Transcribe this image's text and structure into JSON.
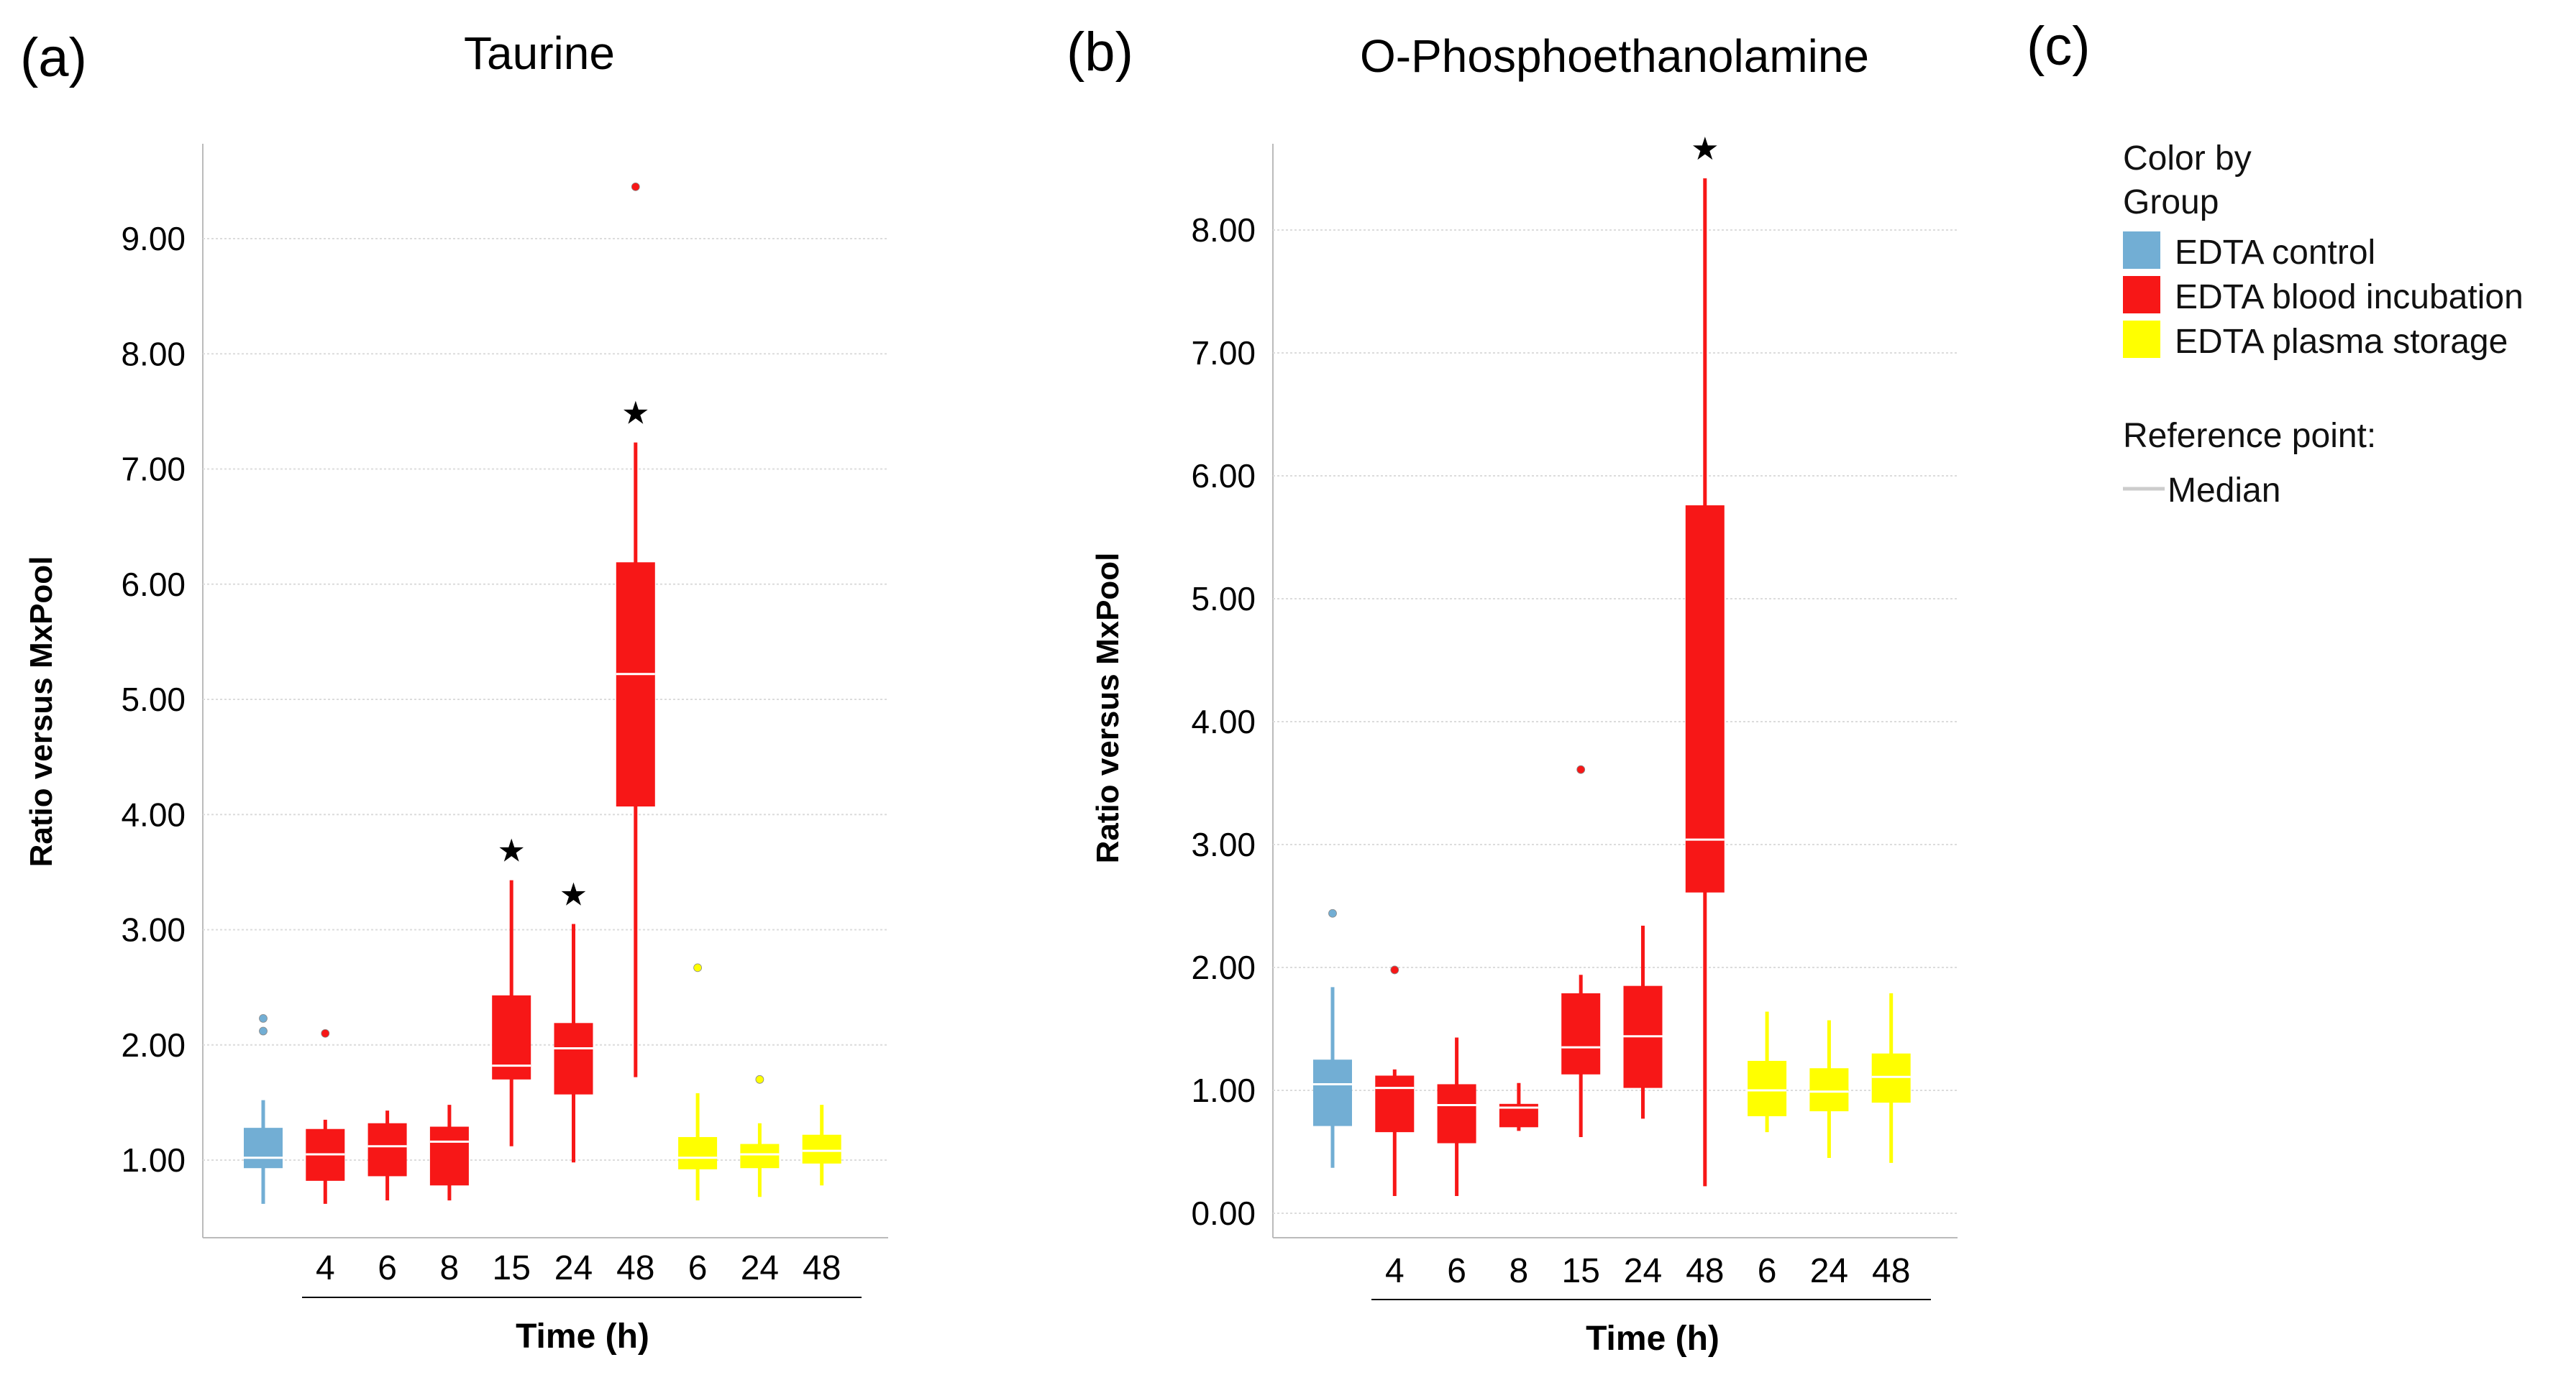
{
  "panel_labels": [
    "(a)",
    "(b)",
    "(c)"
  ],
  "legend": {
    "title_line1": "Color by",
    "title_line2": "Group",
    "items": [
      {
        "label": "EDTA control",
        "color": "#72aed4"
      },
      {
        "label": "EDTA blood incubation",
        "color": "#f71717"
      },
      {
        "label": "EDTA plasma storage",
        "color": "#ffff00"
      }
    ],
    "ref_title": "Reference point:",
    "ref_item": "Median"
  },
  "chart_data": [
    {
      "type": "box",
      "title": "Taurine",
      "ylabel": "Ratio versus MxPool",
      "xlabel": "Time (h)",
      "ylim": [
        0.0,
        9.5
      ],
      "yticks": [
        1.0,
        2.0,
        3.0,
        4.0,
        5.0,
        6.0,
        7.0,
        8.0,
        9.0
      ],
      "ytick_labels": [
        "1.00",
        "2.00",
        "3.00",
        "4.00",
        "5.00",
        "6.00",
        "7.00",
        "8.00",
        "9.00"
      ],
      "grid": true,
      "categories": [
        "",
        "4",
        "6",
        "8",
        "15",
        "24",
        "48",
        "6",
        "24",
        "48"
      ],
      "series": [
        {
          "group": "EDTA control",
          "label": "",
          "whisker_low": 0.62,
          "q1": 0.93,
          "median": 1.02,
          "q3": 1.28,
          "whisker_high": 1.52,
          "outliers": [
            2.12,
            2.23
          ],
          "significant": false
        },
        {
          "group": "EDTA blood incubation",
          "label": "4",
          "whisker_low": 0.62,
          "q1": 0.82,
          "median": 1.05,
          "q3": 1.27,
          "whisker_high": 1.35,
          "outliers": [
            2.1
          ],
          "significant": false
        },
        {
          "group": "EDTA blood incubation",
          "label": "6",
          "whisker_low": 0.65,
          "q1": 0.86,
          "median": 1.12,
          "q3": 1.32,
          "whisker_high": 1.43,
          "outliers": [],
          "significant": false
        },
        {
          "group": "EDTA blood incubation",
          "label": "8",
          "whisker_low": 0.65,
          "q1": 0.78,
          "median": 1.16,
          "q3": 1.29,
          "whisker_high": 1.48,
          "outliers": [],
          "significant": false
        },
        {
          "group": "EDTA blood incubation",
          "label": "15",
          "whisker_low": 1.12,
          "q1": 1.7,
          "median": 1.82,
          "q3": 2.43,
          "whisker_high": 3.43,
          "outliers": [],
          "significant": true
        },
        {
          "group": "EDTA blood incubation",
          "label": "24",
          "whisker_low": 0.98,
          "q1": 1.57,
          "median": 1.97,
          "q3": 2.19,
          "whisker_high": 3.05,
          "outliers": [],
          "significant": true
        },
        {
          "group": "EDTA blood incubation",
          "label": "48",
          "whisker_low": 1.72,
          "q1": 4.07,
          "median": 5.22,
          "q3": 6.19,
          "whisker_high": 7.23,
          "outliers": [
            9.45
          ],
          "significant": true
        },
        {
          "group": "EDTA plasma storage",
          "label": "6",
          "whisker_low": 0.65,
          "q1": 0.92,
          "median": 1.02,
          "q3": 1.2,
          "whisker_high": 1.58,
          "outliers": [
            2.67
          ],
          "significant": false
        },
        {
          "group": "EDTA plasma storage",
          "label": "24",
          "whisker_low": 0.68,
          "q1": 0.93,
          "median": 1.05,
          "q3": 1.14,
          "whisker_high": 1.32,
          "outliers": [
            1.7
          ],
          "significant": false
        },
        {
          "group": "EDTA plasma storage",
          "label": "48",
          "whisker_low": 0.78,
          "q1": 0.97,
          "median": 1.08,
          "q3": 1.22,
          "whisker_high": 1.48,
          "outliers": [],
          "significant": false
        }
      ]
    },
    {
      "type": "box",
      "title": "O-Phosphoethanolamine",
      "ylabel": "Ratio versus MxPool",
      "xlabel": "Time (h)",
      "ylim": [
        -0.1,
        8.7
      ],
      "yticks": [
        0.0,
        1.0,
        2.0,
        3.0,
        4.0,
        5.0,
        6.0,
        7.0,
        8.0
      ],
      "ytick_labels": [
        "0.00",
        "1.00",
        "2.00",
        "3.00",
        "4.00",
        "5.00",
        "6.00",
        "7.00",
        "8.00"
      ],
      "grid": true,
      "categories": [
        "",
        "4",
        "6",
        "8",
        "15",
        "24",
        "48",
        "6",
        "24",
        "48"
      ],
      "series": [
        {
          "group": "EDTA control",
          "label": "",
          "whisker_low": 0.37,
          "q1": 0.71,
          "median": 1.05,
          "q3": 1.25,
          "whisker_high": 1.84,
          "outliers": [
            2.44
          ],
          "significant": false
        },
        {
          "group": "EDTA blood incubation",
          "label": "4",
          "whisker_low": 0.14,
          "q1": 0.66,
          "median": 1.02,
          "q3": 1.12,
          "whisker_high": 1.17,
          "outliers": [
            1.98
          ],
          "significant": false
        },
        {
          "group": "EDTA blood incubation",
          "label": "6",
          "whisker_low": 0.14,
          "q1": 0.57,
          "median": 0.88,
          "q3": 1.05,
          "whisker_high": 1.43,
          "outliers": [],
          "significant": false
        },
        {
          "group": "EDTA blood incubation",
          "label": "8",
          "whisker_low": 0.67,
          "q1": 0.7,
          "median": 0.86,
          "q3": 0.89,
          "whisker_high": 1.06,
          "outliers": [],
          "significant": false
        },
        {
          "group": "EDTA blood incubation",
          "label": "15",
          "whisker_low": 0.62,
          "q1": 1.13,
          "median": 1.35,
          "q3": 1.79,
          "whisker_high": 1.94,
          "outliers": [
            3.61
          ],
          "significant": false
        },
        {
          "group": "EDTA blood incubation",
          "label": "24",
          "whisker_low": 0.77,
          "q1": 1.02,
          "median": 1.44,
          "q3": 1.85,
          "whisker_high": 2.34,
          "outliers": [],
          "significant": false
        },
        {
          "group": "EDTA blood incubation",
          "label": "48",
          "whisker_low": 0.22,
          "q1": 2.61,
          "median": 3.04,
          "q3": 5.76,
          "whisker_high": 8.42,
          "outliers": [],
          "significant": true
        },
        {
          "group": "EDTA plasma storage",
          "label": "6",
          "whisker_low": 0.66,
          "q1": 0.79,
          "median": 1.0,
          "q3": 1.24,
          "whisker_high": 1.64,
          "outliers": [],
          "significant": false
        },
        {
          "group": "EDTA plasma storage",
          "label": "24",
          "whisker_low": 0.45,
          "q1": 0.83,
          "median": 0.99,
          "q3": 1.18,
          "whisker_high": 1.57,
          "outliers": [],
          "significant": false
        },
        {
          "group": "EDTA plasma storage",
          "label": "48",
          "whisker_low": 0.41,
          "q1": 0.9,
          "median": 1.11,
          "q3": 1.3,
          "whisker_high": 1.79,
          "outliers": [],
          "significant": false
        }
      ]
    }
  ]
}
